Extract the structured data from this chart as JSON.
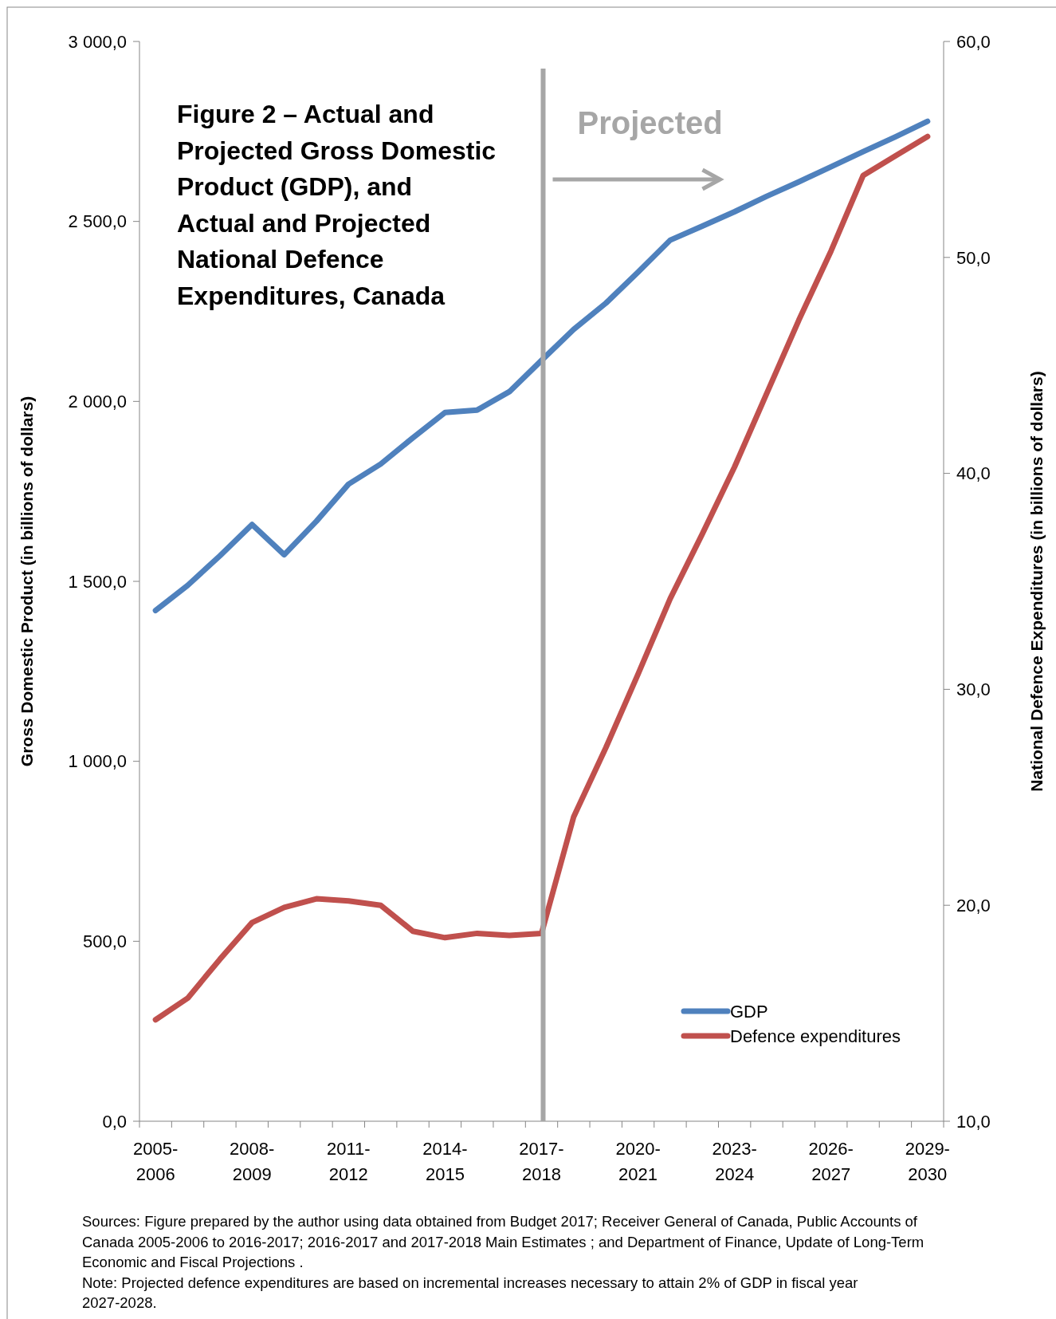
{
  "chart_data": {
    "type": "line",
    "title": "Figure 2 – Actual and Projected Gross Domestic Product (GDP), and Actual and Projected National Defence Expenditures, Canada",
    "ylabel": "Gross Domestic  Product (in billions of dollars)",
    "y2label": "National Defence Expenditures  (in billions of dollars)",
    "categories": [
      "2005-2006",
      null,
      null,
      "2008-2009",
      null,
      null,
      "2011-2012",
      null,
      null,
      "2014-2015",
      null,
      null,
      "2017-2018",
      null,
      null,
      "2020-2021",
      null,
      null,
      "2023-2024",
      null,
      null,
      "2026-2027",
      null,
      null,
      "2029-2030"
    ],
    "series": [
      {
        "name": "GDP",
        "color": "#4f81bd",
        "values": [
          1419,
          1489,
          1571,
          1658,
          1574,
          1667,
          1770,
          1826,
          1899,
          1969,
          1976,
          2027,
          2114,
          2200,
          2273,
          2359,
          2448,
          2487,
          2527,
          2570,
          2610,
          2652,
          2694,
          2735,
          2778
        ]
      },
      {
        "name": "Defence expenditures",
        "color": "#c0504d",
        "axis": "y2",
        "values": [
          14.7,
          15.7,
          17.5,
          19.2,
          19.9,
          20.3,
          20.2,
          20.0,
          18.8,
          18.5,
          18.7,
          18.6,
          18.7,
          24.1,
          27.3,
          30.7,
          34.2,
          37.2,
          40.3,
          43.7,
          47.1,
          50.3,
          53.8,
          54.7,
          55.6
        ]
      }
    ],
    "ylim": [
      0,
      3000
    ],
    "yticks": [
      {
        "value": 0,
        "label": "0,0"
      },
      {
        "value": 500,
        "label": "500,0"
      },
      {
        "value": 1000,
        "label": "1 000,0"
      },
      {
        "value": 1500,
        "label": "1 500,0"
      },
      {
        "value": 2000,
        "label": "2 000,0"
      },
      {
        "value": 2500,
        "label": "2 500,0"
      },
      {
        "value": 3000,
        "label": "3 000,0"
      }
    ],
    "y2lim": [
      10,
      60
    ],
    "y2ticks": [
      {
        "value": 10,
        "label": "10,0"
      },
      {
        "value": 20,
        "label": "20,0"
      },
      {
        "value": 30,
        "label": "30,0"
      },
      {
        "value": 40,
        "label": "40,0"
      },
      {
        "value": 50,
        "label": "50,0"
      },
      {
        "value": 60,
        "label": "60,0"
      }
    ],
    "ref_lines": [
      {
        "axis": "x",
        "value": "2017-2018",
        "label": "Projected",
        "color": "#a6a6a6"
      }
    ],
    "legend": "bottom right",
    "grid": false,
    "marker": "none",
    "line_style": "solid",
    "annotations": [
      "Sources: Figure prepared by the author using data obtained from Budget 2017; Receiver General of Canada, Public Accounts of Canada 2005-2006 to 2016-2017; 2016-2017 and 2017-2018 Main Estimates ; and Department of Finance, Update of Long-Term Economic and Fiscal Projections .",
      "Note:  Projected defence expenditures are based on incremental increases necessary to attain 2% of GDP in fiscal year 2027-2028."
    ]
  }
}
